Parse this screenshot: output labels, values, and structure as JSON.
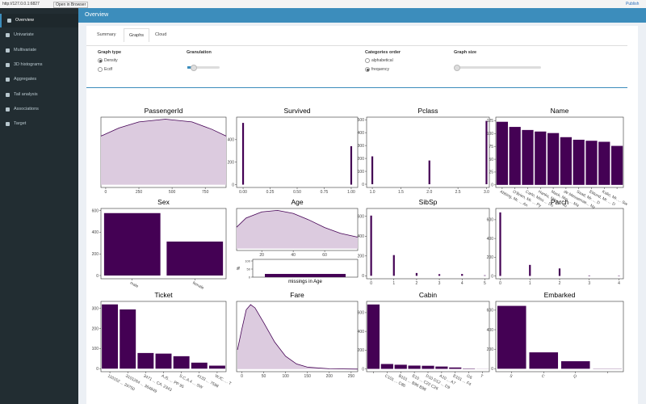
{
  "browser": {
    "url": "http://127.0.0.1:6827",
    "open": "Open in Browser",
    "publish": "Publish"
  },
  "sidebar": [
    "Overview",
    "Univariate",
    "Multivariate",
    "3D histograms",
    "Aggregates",
    "Tail analysis",
    "Associations",
    "Target"
  ],
  "header": {
    "title": "Overview"
  },
  "tabs": [
    "Summary",
    "Graphs",
    "Cloud"
  ],
  "controls": {
    "graph_type": {
      "label": "Graph type",
      "options": [
        "Density",
        "Ecdf"
      ]
    },
    "granulation": {
      "label": "Granulation"
    },
    "categories_order": {
      "label": "Categories order",
      "options": [
        "alphabetical",
        "frequency"
      ]
    },
    "graph_size": {
      "label": "Graph size"
    }
  },
  "chart_data": [
    {
      "type": "area",
      "title": "PassengerId",
      "x": [
        -36,
        100,
        250,
        450,
        650,
        800,
        907
      ],
      "values": [
        0.72,
        0.84,
        0.93,
        0.97,
        0.93,
        0.82,
        0.72
      ],
      "xlim": [
        -36,
        907
      ],
      "xticks": [
        0,
        250,
        500,
        750
      ],
      "ylim": [
        -0.04,
        1.0
      ],
      "color": "#440154",
      "fill": "#dccbdf"
    },
    {
      "type": "bar",
      "title": "Survived",
      "x": [
        0,
        1
      ],
      "values": [
        549,
        342
      ],
      "xlim": [
        -0.06,
        1.06
      ],
      "xticks": [
        {
          "value": 0,
          "label": "0.00"
        },
        {
          "value": 0.25,
          "label": "0.25"
        },
        {
          "value": 0.5,
          "label": "0.50"
        },
        {
          "value": 0.75,
          "label": "0.75"
        },
        {
          "value": 1,
          "label": "1.00"
        }
      ],
      "ylim": [
        -25,
        600
      ],
      "yticks": [
        0,
        200,
        400
      ],
      "color": "#440154"
    },
    {
      "type": "bar",
      "title": "Pclass",
      "x": [
        1,
        2,
        3
      ],
      "values": [
        216,
        184,
        491
      ],
      "xlim": [
        0.9,
        3.05
      ],
      "xticks": [
        {
          "value": 1,
          "label": "1.0"
        },
        {
          "value": 1.5,
          "label": "1.5"
        },
        {
          "value": 2,
          "label": "2.0"
        },
        {
          "value": 2.5,
          "label": "2.5"
        },
        {
          "value": 3,
          "label": "3.0"
        }
      ],
      "ylim": [
        -25,
        520
      ],
      "yticks": [
        0,
        100,
        200,
        300,
        400,
        500
      ],
      "color": "#440154"
    },
    {
      "type": "column",
      "title": "Name",
      "categories": [
        "Abbing, Mr. ... An",
        "O'Brien, Mr. ... Py",
        "Carlo, Miss ... Du",
        "Hanks, Miss ... Ju",
        "Mack, Mrs. ... Ma",
        "de Messemae... Ny",
        "Saad, Mr. ... D",
        "Eklund, Mr. ... D",
        "Kalio, Mr. ... Sw",
        null
      ],
      "values": [
        123,
        113,
        107,
        104,
        101,
        93,
        88,
        86,
        84,
        76
      ],
      "ylim": [
        -5,
        132
      ],
      "yticks": [
        0,
        25,
        50,
        75,
        100,
        125
      ],
      "color": "#440154"
    },
    {
      "type": "column",
      "title": "Sex",
      "categories": [
        "male",
        "female"
      ],
      "values": [
        577,
        314
      ],
      "ylim": [
        -30,
        620
      ],
      "yticks": [
        0,
        200,
        400,
        600
      ],
      "color": "#440154"
    },
    {
      "type": "area",
      "title": "Age",
      "x": [
        4,
        10,
        20,
        30,
        40,
        50,
        60,
        70,
        81
      ],
      "values": [
        0.56,
        0.8,
        0.96,
        1.0,
        0.92,
        0.75,
        0.55,
        0.4,
        0.3
      ],
      "xlim": [
        4,
        81
      ],
      "xticks": [
        20,
        40,
        60
      ],
      "ylim": [
        -0.05,
        1.05
      ],
      "color": "#440154",
      "fill": "#dccbdf",
      "missing": {
        "label": "missings in Age",
        "axis_label": "%",
        "value": 19.9,
        "ylim": [
          0,
          110
        ],
        "yticks": [
          0,
          50,
          100
        ]
      }
    },
    {
      "type": "bar",
      "title": "SibSp",
      "x": [
        0,
        1,
        2,
        3,
        4,
        5
      ],
      "values": [
        608,
        209,
        28,
        16,
        18,
        5
      ],
      "xlim": [
        -0.2,
        5.2
      ],
      "xticks": [
        0,
        1,
        2,
        3,
        4,
        5
      ],
      "ylim": [
        -30,
        680
      ],
      "yticks": [
        0,
        200,
        400,
        600
      ],
      "color": "#440154"
    },
    {
      "type": "bar",
      "title": "Parch",
      "x": [
        0,
        1,
        2,
        3,
        4
      ],
      "values": [
        678,
        118,
        80,
        5,
        4
      ],
      "xlim": [
        -0.15,
        4.15
      ],
      "xticks": [
        0,
        1,
        2,
        3,
        4
      ],
      "ylim": [
        -30,
        720
      ],
      "yticks": [
        0,
        200,
        400,
        600
      ],
      "color": "#440154"
    },
    {
      "type": "column",
      "title": "Ticket",
      "categories": [
        "110152 ... 29750",
        "3101264 ... 364849",
        "3471 ... CA. 2343",
        "A./5. ... PP 95",
        "S.C.A.4 ... SW",
        "4133 ... 7598",
        "W./C. ... T"
      ],
      "values": [
        320,
        295,
        78,
        75,
        62,
        30,
        15
      ],
      "ylim": [
        -15,
        335
      ],
      "yticks": [
        0,
        100,
        200,
        300
      ],
      "color": "#440154"
    },
    {
      "type": "area",
      "title": "Fare",
      "x": [
        -10,
        0,
        10,
        20,
        30,
        50,
        75,
        100,
        125,
        150,
        200,
        265
      ],
      "values": [
        0.3,
        0.62,
        0.92,
        1.0,
        0.95,
        0.72,
        0.42,
        0.2,
        0.08,
        0.03,
        0.005,
        0
      ],
      "xlim": [
        -12,
        265
      ],
      "xticks": [
        0,
        50,
        100,
        150,
        200,
        250
      ],
      "ylim": [
        -0.04,
        1.05
      ],
      "color": "#440154",
      "fill": "#dccbdf"
    },
    {
      "type": "column",
      "title": "Cabin",
      "categories": [
        null,
        "C101 ... C86",
        "B101 ... B96 B98",
        "E10 ... C22 C26",
        "D10 D12 ... D9",
        "A10 ... A7",
        "E101 ... F4",
        "G6",
        "T"
      ],
      "values": [
        687,
        52,
        44,
        35,
        33,
        25,
        15,
        4,
        1
      ],
      "ylim": [
        -30,
        720
      ],
      "yticks": [
        0,
        200,
        400,
        600
      ],
      "color": "#440154"
    },
    {
      "type": "column",
      "title": "Embarked",
      "categories": [
        "S",
        "C",
        "Q",
        null
      ],
      "values": [
        644,
        168,
        77,
        2
      ],
      "ylim": [
        -30,
        690
      ],
      "yticks": [
        0,
        200,
        400,
        600
      ],
      "color": "#440154"
    }
  ]
}
